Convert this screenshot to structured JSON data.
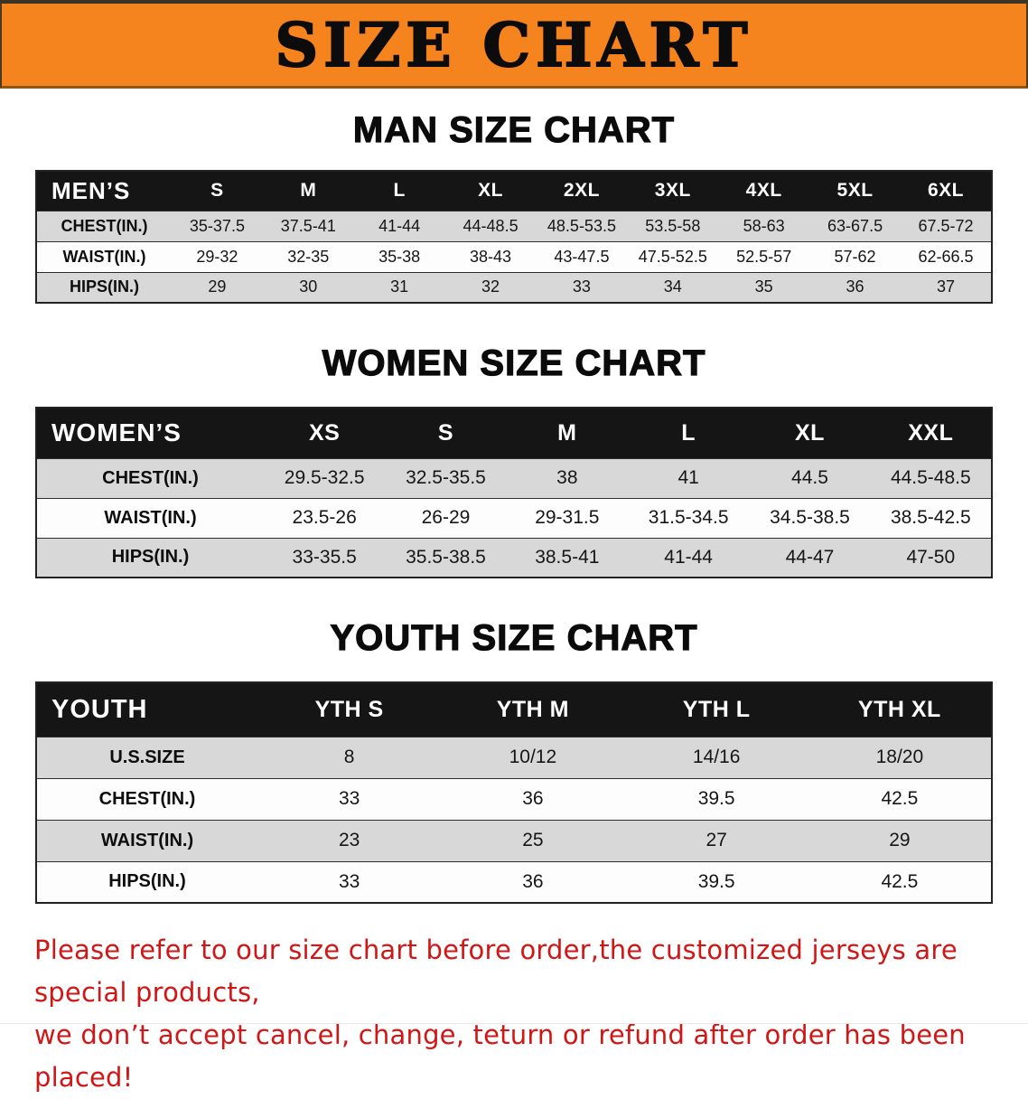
{
  "banner": {
    "title": "SIZE CHART"
  },
  "men": {
    "heading": "MAN SIZE CHART",
    "label": "MEN’S",
    "columns": [
      "S",
      "M",
      "L",
      "XL",
      "2XL",
      "3XL",
      "4XL",
      "5XL",
      "6XL"
    ],
    "rows": [
      {
        "label": "CHEST(IN.)",
        "values": [
          "35-37.5",
          "37.5-41",
          "41-44",
          "44-48.5",
          "48.5-53.5",
          "53.5-58",
          "58-63",
          "63-67.5",
          "67.5-72"
        ]
      },
      {
        "label": "WAIST(IN.)",
        "values": [
          "29-32",
          "32-35",
          "35-38",
          "38-43",
          "43-47.5",
          "47.5-52.5",
          "52.5-57",
          "57-62",
          "62-66.5"
        ]
      },
      {
        "label": "HIPS(IN.)",
        "values": [
          "29",
          "30",
          "31",
          "32",
          "33",
          "34",
          "35",
          "36",
          "37"
        ]
      }
    ]
  },
  "women": {
    "heading": "WOMEN SIZE CHART",
    "label": "WOMEN’S",
    "columns": [
      "XS",
      "S",
      "M",
      "L",
      "XL",
      "XXL"
    ],
    "rows": [
      {
        "label": "CHEST(IN.)",
        "values": [
          "29.5-32.5",
          "32.5-35.5",
          "38",
          "41",
          "44.5",
          "44.5-48.5"
        ]
      },
      {
        "label": "WAIST(IN.)",
        "values": [
          "23.5-26",
          "26-29",
          "29-31.5",
          "31.5-34.5",
          "34.5-38.5",
          "38.5-42.5"
        ]
      },
      {
        "label": "HIPS(IN.)",
        "values": [
          "33-35.5",
          "35.5-38.5",
          "38.5-41",
          "41-44",
          "44-47",
          "47-50"
        ]
      }
    ]
  },
  "youth": {
    "heading": "YOUTH SIZE CHART",
    "label": "YOUTH",
    "columns": [
      "YTH S",
      "YTH M",
      "YTH L",
      "YTH XL"
    ],
    "rows": [
      {
        "label": "U.S.SIZE",
        "values": [
          "8",
          "10/12",
          "14/16",
          "18/20"
        ]
      },
      {
        "label": "CHEST(IN.)",
        "values": [
          "33",
          "36",
          "39.5",
          "42.5"
        ]
      },
      {
        "label": "WAIST(IN.)",
        "values": [
          "23",
          "25",
          "27",
          "29"
        ]
      },
      {
        "label": "HIPS(IN.)",
        "values": [
          "33",
          "36",
          "39.5",
          "42.5"
        ]
      }
    ]
  },
  "disclaimer": {
    "line1": "Please refer to our size chart before order,the customized jerseys are special products,",
    "line2": "we don’t accept cancel, change, teturn or refund after order has been placed!"
  },
  "colors": {
    "banner_bg": "#f5831e",
    "table_header_bg": "#151515",
    "row_shade": "#d8d8d8",
    "disclaimer_red": "#d11616",
    "title_black": "#0c0c0c"
  }
}
